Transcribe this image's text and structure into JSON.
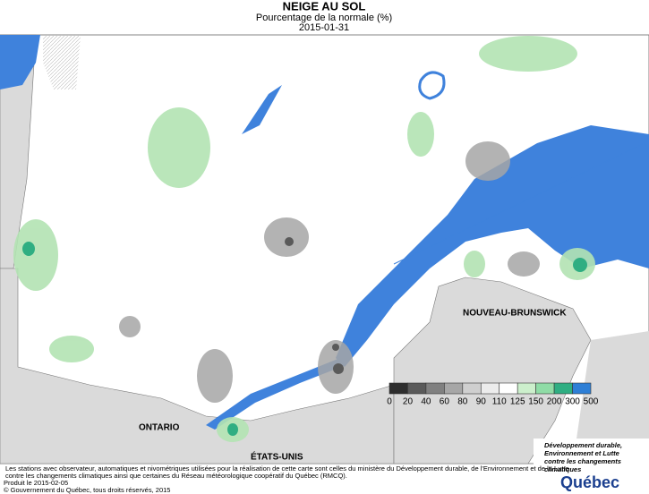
{
  "header": {
    "title": "NEIGE AU SOL",
    "subtitle": "Pourcentage de la normale (%)",
    "date": "2015-01-31"
  },
  "regions": [
    "ONTARIO",
    "NOUVEAU-BRUNSWICK",
    "ÉTATS-UNIS"
  ],
  "legend": {
    "labels": [
      0,
      20,
      40,
      60,
      80,
      90,
      110,
      125,
      150,
      200,
      300,
      500
    ],
    "colors": [
      "#2e2e2e",
      "#5a5a5a",
      "#808080",
      "#a6a6a6",
      "#cfcfcf",
      "#ececec",
      "#ffffff",
      "#ccefcc",
      "#8fdca6",
      "#2fae82",
      "#2e7fd6",
      "#1a12c0"
    ]
  },
  "footer": {
    "note1": "Les stations avec observateur, automatiques et nivométriques utilisées pour la réalisation de cette carte sont celles du ministère du Développement durable, de l'Environnement et de la Lutte",
    "note2": "contre les changements climatiques ainsi que certaines du Réseau météorologique coopératif du Québec (RMCQ).",
    "produced": "Produit le 2015-02-05",
    "copyright": "© Gouvernement du Québec, tous droits réservés, 2015"
  },
  "logo": {
    "line1": "Développement durable,",
    "line2": "Environnement et Lutte",
    "line3": "contre les changements",
    "line4": "climatiques",
    "brand": "Québec"
  }
}
